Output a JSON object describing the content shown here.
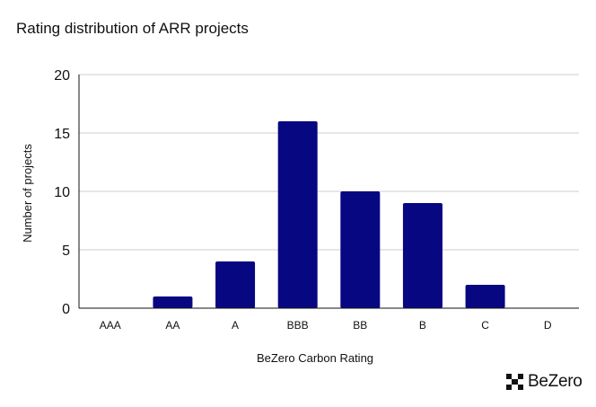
{
  "brand": {
    "name": "BeZero"
  },
  "colors": {
    "bar": "#080782",
    "axis": "#111111",
    "grid": "#cccccc"
  },
  "chart_data": {
    "type": "bar",
    "title": "Rating distribution of ARR projects",
    "xlabel": "BeZero Carbon Rating",
    "ylabel": "Number of projects",
    "categories": [
      "AAA",
      "AA",
      "A",
      "BBB",
      "BB",
      "B",
      "C",
      "D"
    ],
    "values": [
      0,
      1,
      4,
      16,
      10,
      9,
      2,
      0
    ],
    "ylim": [
      0,
      20
    ],
    "yticks": [
      "0",
      "5",
      "10",
      "15",
      "20"
    ],
    "grid": true,
    "legend": "none"
  }
}
